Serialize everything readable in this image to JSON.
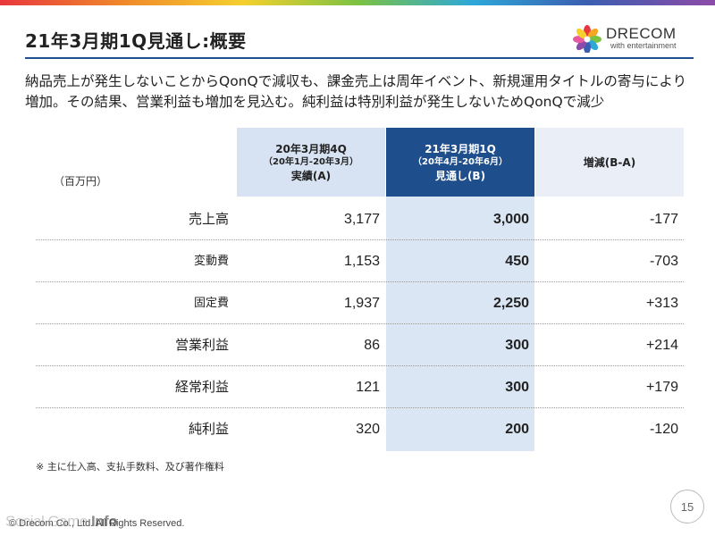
{
  "title": "21年3月期1Q見通し:概要",
  "logo": {
    "name": "DRECOM",
    "sub": "with entertainment"
  },
  "summary": {
    "line1": "納品売上が発生しないことからQonQで減収も、課金売上は周年イベント、新規運用タイトルの寄与により",
    "line2": "増加。その結果、営業利益も増加を見込む。純利益は特別利益が発生しないためQonQで減少"
  },
  "table": {
    "unit": "（百万円）",
    "columns": {
      "a": {
        "line1": "20年3月期4Q",
        "line2": "（20年1月-20年3月）",
        "line3": "実績(A)"
      },
      "b": {
        "line1": "21年3月期1Q",
        "line2": "（20年4月-20年6月）",
        "line3": "見通し(B)"
      },
      "d": {
        "line1": "増減(B-A)"
      }
    },
    "rows": [
      {
        "label": "売上高",
        "a": "3,177",
        "b": "3,000",
        "d": "-177"
      },
      {
        "label": "変動費",
        "a": "1,153",
        "b": "450",
        "d": "-703"
      },
      {
        "label": "固定費",
        "a": "1,937",
        "b": "2,250",
        "d": "+313"
      },
      {
        "label": "営業利益",
        "a": "86",
        "b": "300",
        "d": "+214"
      },
      {
        "label": "経常利益",
        "a": "121",
        "b": "300",
        "d": "+179"
      },
      {
        "label": "純利益",
        "a": "320",
        "b": "200",
        "d": "-120"
      }
    ]
  },
  "footnote": "※ 主に仕入高、支払手数料、及び著作権料",
  "page_number": "15",
  "copyright": "© Drecom Co., Ltd. All Rights Reserved.",
  "watermark": {
    "prefix": "Social Game ",
    "suffix": "Info"
  },
  "colors": {
    "accent": "#1f4e8c",
    "col_a_bg": "#d7e3f2",
    "col_b_bg": "#dae6f4",
    "col_d_bg": "#e9eef7"
  }
}
